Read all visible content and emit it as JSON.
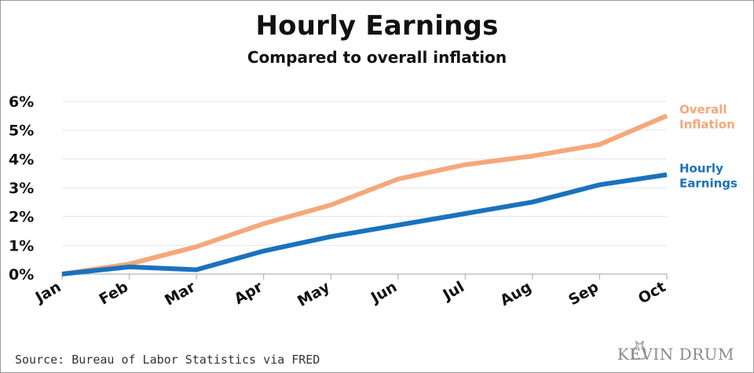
{
  "header": {
    "title": "Hourly Earnings",
    "subtitle": "Compared to overall inflation"
  },
  "footer": {
    "source": "Source: Bureau of Labor Statistics via FRED",
    "brand": "KEVIN DRUM"
  },
  "colors": {
    "inflation": "#f5a87a",
    "earnings": "#1a72bd",
    "grid": "#e6e6e6",
    "axis": "#b5b5b5"
  },
  "chart_data": {
    "type": "line",
    "categories": [
      "Jan",
      "Feb",
      "Mar",
      "Apr",
      "May",
      "Jun",
      "Jul",
      "Aug",
      "Sep",
      "Oct"
    ],
    "ylim": [
      0,
      6
    ],
    "yticks": [
      "0%",
      "1%",
      "2%",
      "3%",
      "4%",
      "5%",
      "6%"
    ],
    "grid": true,
    "series": [
      {
        "name": "Overall Inflation",
        "label_lines": [
          "Overall",
          "Inflation"
        ],
        "color": "#f5a87a",
        "values": [
          0.0,
          0.35,
          0.95,
          1.75,
          2.4,
          3.3,
          3.8,
          4.1,
          4.5,
          5.5
        ]
      },
      {
        "name": "Hourly Earnings",
        "label_lines": [
          "Hourly",
          "Earnings"
        ],
        "color": "#1a72bd",
        "values": [
          0.0,
          0.25,
          0.15,
          0.8,
          1.3,
          1.7,
          2.1,
          2.5,
          3.1,
          3.45
        ]
      }
    ]
  }
}
